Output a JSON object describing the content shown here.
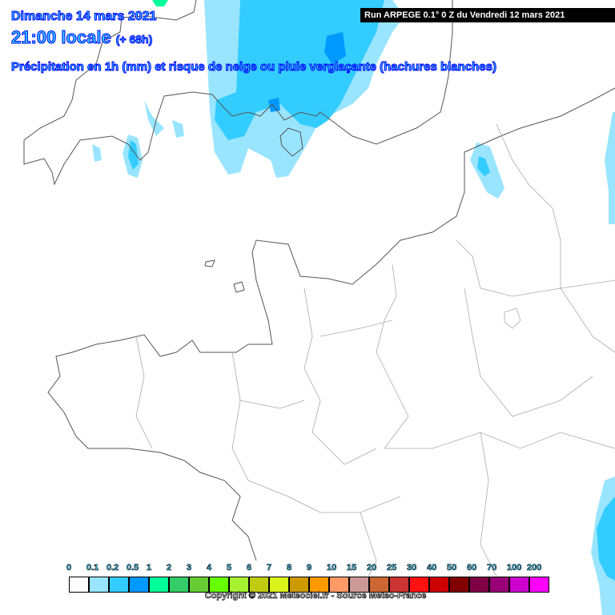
{
  "header": {
    "date": "Dimanche 14 mars 2021",
    "time": "21:00 locale",
    "lead": "(+ 68h)",
    "subtitle": "Précipitation en 1h (mm) et risque de neige ou pluie verglaçante (hachures blanches)",
    "run": "Run ARPEGE 0.1° 0 Z du Vendredi 12 mars 2021"
  },
  "legend": {
    "labels": [
      "0",
      "0.1",
      "0.2",
      "0.5",
      "1",
      "2",
      "3",
      "4",
      "5",
      "6",
      "7",
      "8",
      "9",
      "10",
      "15",
      "20",
      "25",
      "30",
      "40",
      "50",
      "60",
      "70",
      "100",
      "200"
    ],
    "colors": [
      "#ffffff",
      "#99e5ff",
      "#33ccff",
      "#0099ff",
      "#00ff99",
      "#33cc66",
      "#66cc33",
      "#66ff00",
      "#a6f230",
      "#bfcc11",
      "#d9f21a",
      "#cc9900",
      "#ff9900",
      "#ff9966",
      "#cc9999",
      "#cc6633",
      "#cc3333",
      "#ff1111",
      "#cc0000",
      "#800000",
      "#800044",
      "#990077",
      "#cc00cc",
      "#ff00ff"
    ]
  },
  "copyright": "Copyright © 2021 Meteociel.fr - Source Meteo-France",
  "colors": {
    "light": "#99e5ff",
    "mid": "#33ccff",
    "strong": "#0099ff",
    "coast": "#555555",
    "border": "#aaaaaa"
  }
}
